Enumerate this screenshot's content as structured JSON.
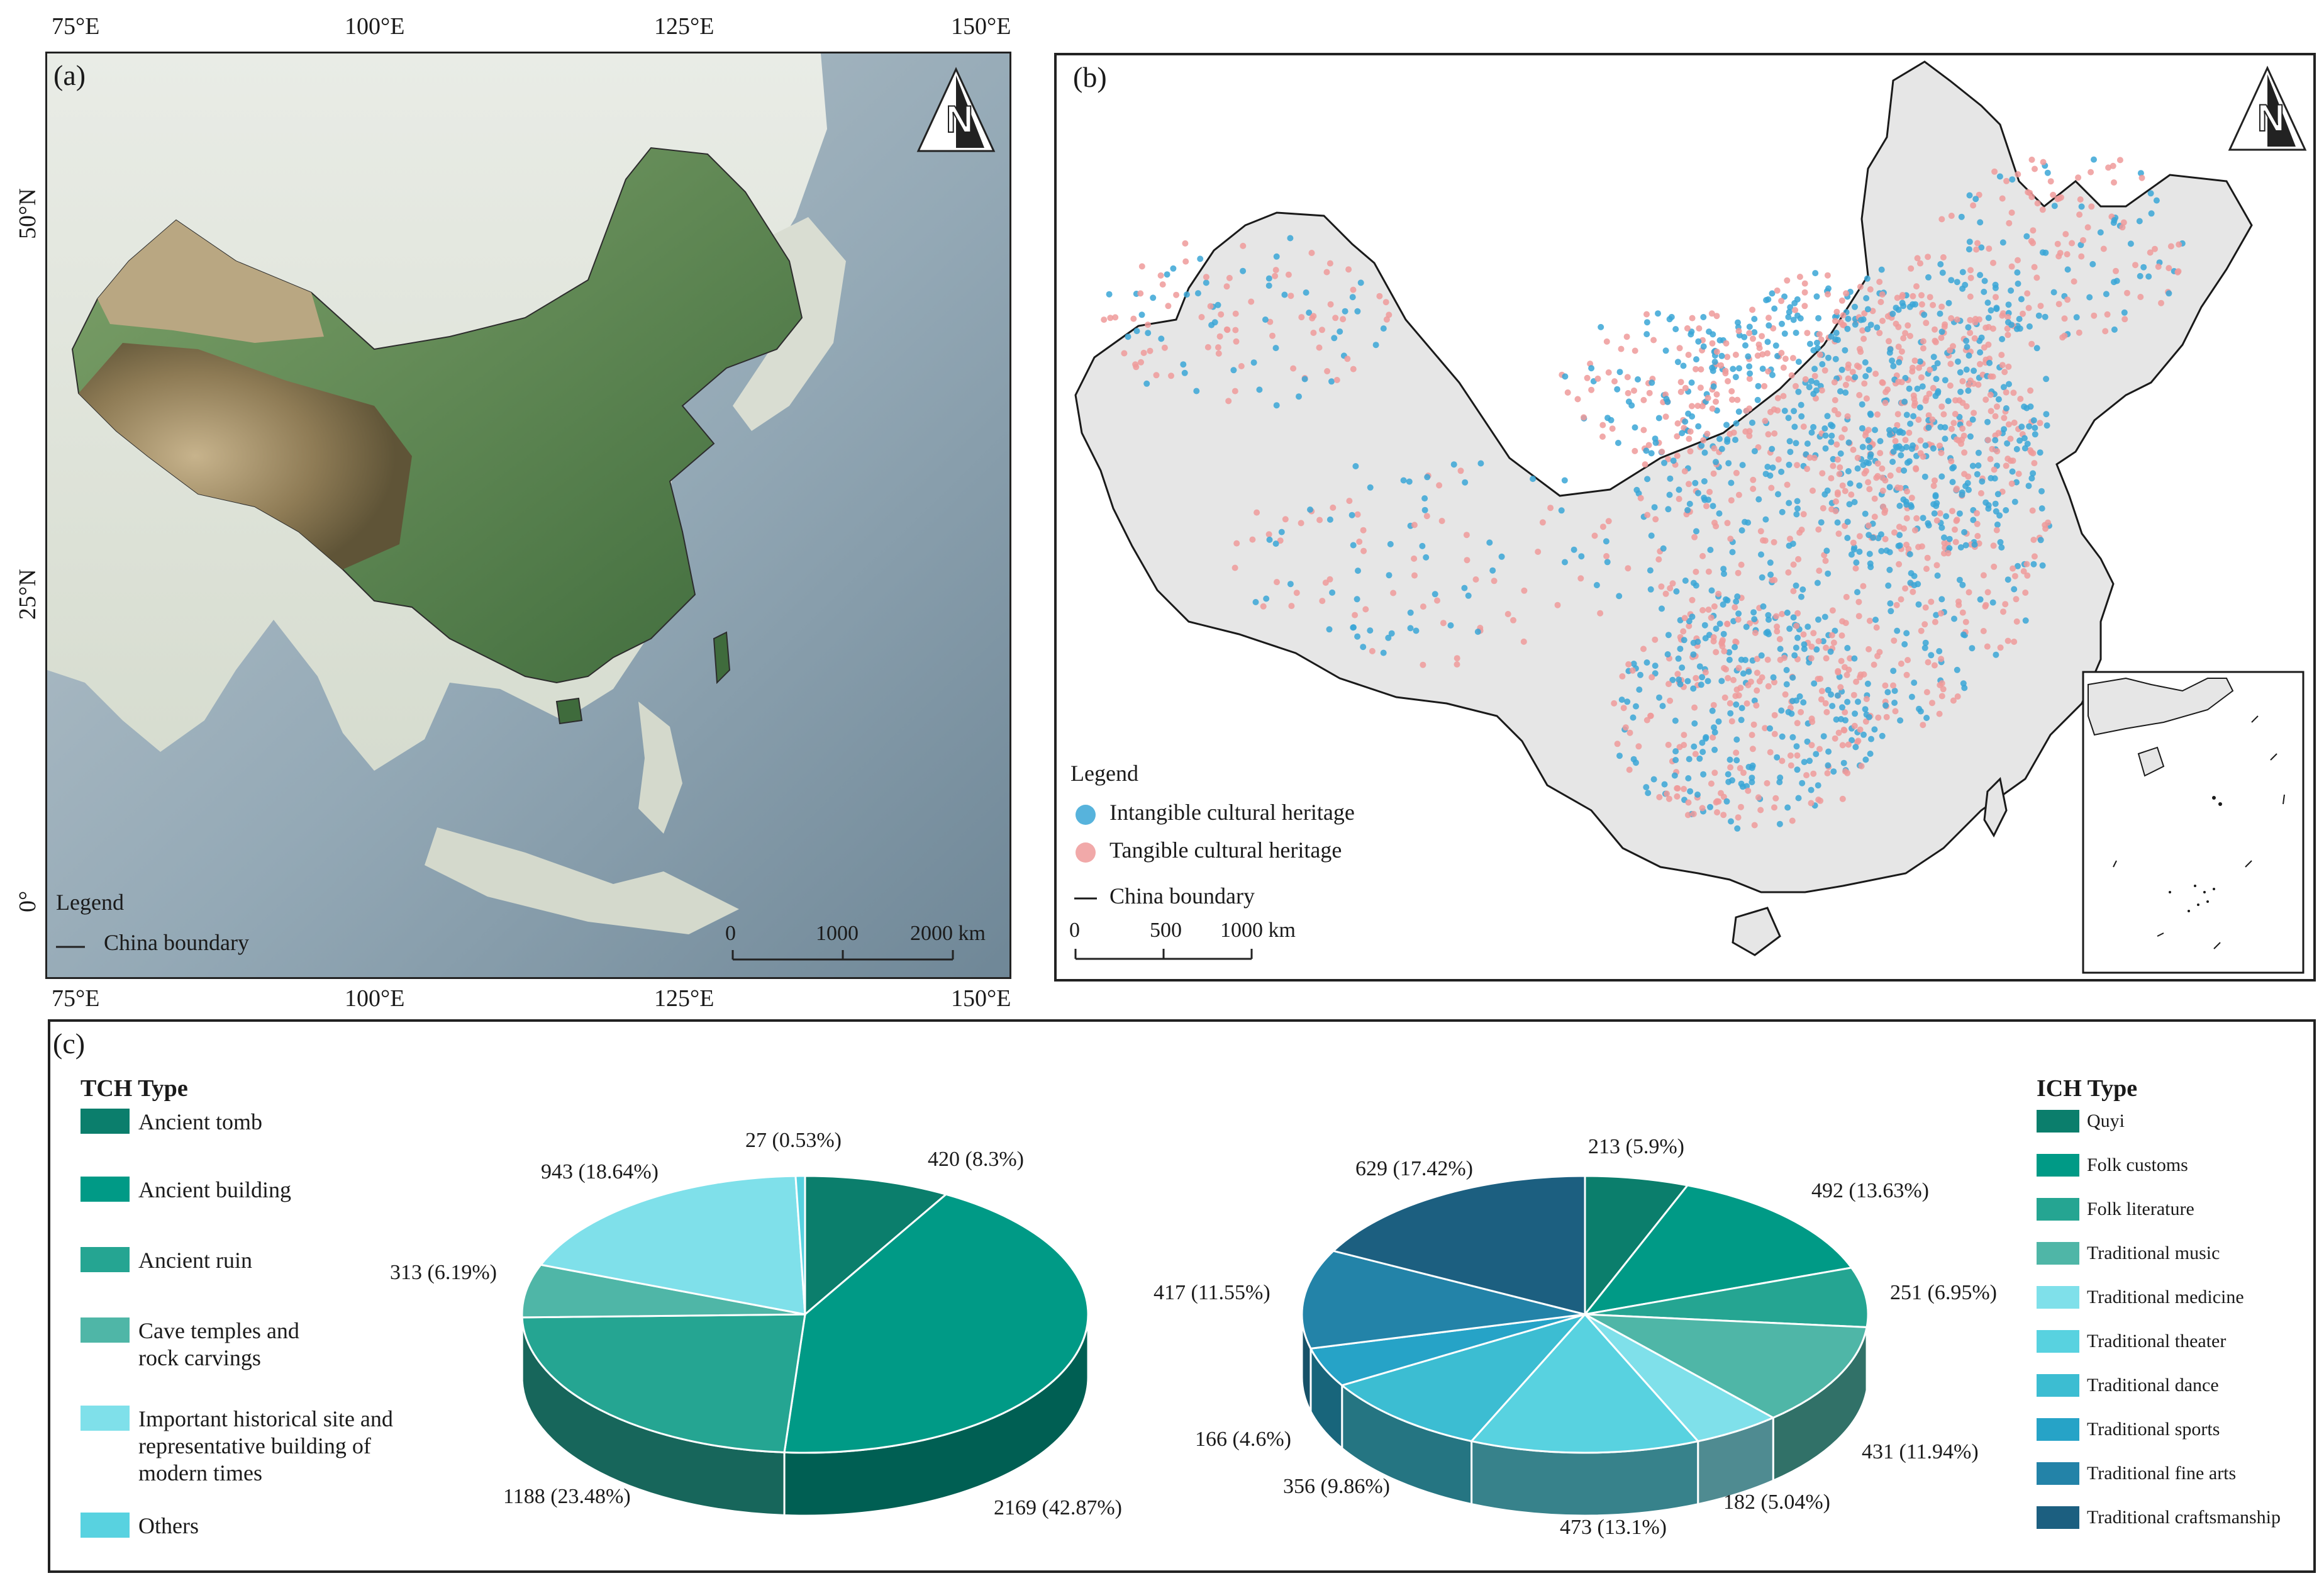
{
  "panel_a": {
    "label": "(a)",
    "lon_ticks": [
      "75°E",
      "100°E",
      "125°E",
      "150°E"
    ],
    "lat_ticks": [
      "50°N",
      "25°N",
      "0°"
    ],
    "legend_title": "Legend",
    "legend_boundary": "China boundary",
    "scale": [
      "0",
      "1000",
      "2000 km"
    ]
  },
  "panel_b": {
    "label": "(b)",
    "legend_title": "Legend",
    "legend_ich": "Intangible cultural heritage",
    "legend_tch": "Tangible cultural heritage",
    "legend_boundary": "China boundary",
    "scale": [
      "0",
      "500",
      "1000 km"
    ],
    "colors": {
      "ich": "#3aa6d6",
      "tch": "#ee9a9a"
    }
  },
  "panel_c": {
    "label": "(c)",
    "tch_heading": "TCH Type",
    "ich_heading": "ICH Type"
  },
  "chart_data": [
    {
      "type": "pie",
      "title": "TCH Type",
      "slices": [
        {
          "name": "Ancient tomb",
          "value": 420,
          "label": "420 (8.3%)",
          "color": "#0b7e6c"
        },
        {
          "name": "Ancient building",
          "value": 2169,
          "label": "2169 (42.87%)",
          "color": "#009a86"
        },
        {
          "name": "Ancient ruin",
          "value": 1188,
          "label": "1188 (23.48%)",
          "color": "#25a592"
        },
        {
          "name": "Cave temples and rock carvings",
          "value": 313,
          "label": "313 (6.19%)",
          "color": "#4fb6a7"
        },
        {
          "name": "Important historical site and representative building of modern times",
          "value": 943,
          "label": "943 (18.64%)",
          "color": "#7fe0ea"
        },
        {
          "name": "Others",
          "value": 27,
          "label": "27 (0.53%)",
          "color": "#58d2e0"
        }
      ]
    },
    {
      "type": "pie",
      "title": "ICH Type",
      "slices": [
        {
          "name": "Quyi",
          "value": 213,
          "label": "213 (5.9%)",
          "color": "#0b7e6c"
        },
        {
          "name": "Folk customs",
          "value": 492,
          "label": "492 (13.63%)",
          "color": "#009a86"
        },
        {
          "name": "Folk literature",
          "value": 251,
          "label": "251 (6.95%)",
          "color": "#25a592"
        },
        {
          "name": "Traditional music",
          "value": 431,
          "label": "431 (11.94%)",
          "color": "#4fb6a7"
        },
        {
          "name": "Traditional medicine",
          "value": 182,
          "label": "182 (5.04%)",
          "color": "#7fe0ea"
        },
        {
          "name": "Traditional theater",
          "value": 473,
          "label": "473 (13.1%)",
          "color": "#58d2e0"
        },
        {
          "name": "Traditional dance",
          "value": 356,
          "label": "356 (9.86%)",
          "color": "#3cbdd2"
        },
        {
          "name": "Traditional sports",
          "value": 166,
          "label": "166 (4.6%)",
          "color": "#26a3c7"
        },
        {
          "name": "Traditional fine arts",
          "value": 417,
          "label": "417 (11.55%)",
          "color": "#2383a8"
        },
        {
          "name": "Traditional craftsmanship",
          "value": 629,
          "label": "629 (17.42%)",
          "color": "#1c5f80"
        }
      ]
    }
  ]
}
